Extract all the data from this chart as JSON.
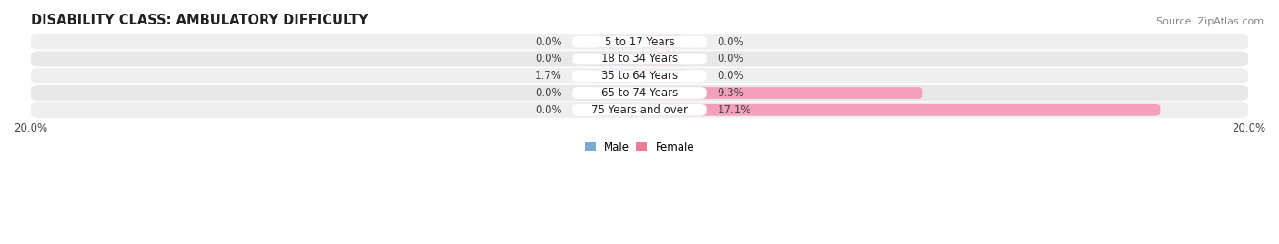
{
  "title": "DISABILITY CLASS: AMBULATORY DIFFICULTY",
  "source": "Source: ZipAtlas.com",
  "categories": [
    "5 to 17 Years",
    "18 to 34 Years",
    "35 to 64 Years",
    "65 to 74 Years",
    "75 Years and over"
  ],
  "male_values": [
    0.0,
    0.0,
    1.7,
    0.0,
    0.0
  ],
  "female_values": [
    0.0,
    0.0,
    0.0,
    9.3,
    17.1
  ],
  "x_max": 20.0,
  "male_color": "#a8c0de",
  "female_color": "#f4a0bc",
  "row_colors": [
    "#efefef",
    "#e8e8e8",
    "#efefef",
    "#e8e8e8",
    "#efefef"
  ],
  "center_bg": "#ffffff",
  "legend_male_color": "#7aaad4",
  "legend_female_color": "#f07898",
  "title_fontsize": 10.5,
  "label_fontsize": 8.5,
  "tick_fontsize": 8.5,
  "source_fontsize": 8,
  "value_fontsize": 8.5
}
